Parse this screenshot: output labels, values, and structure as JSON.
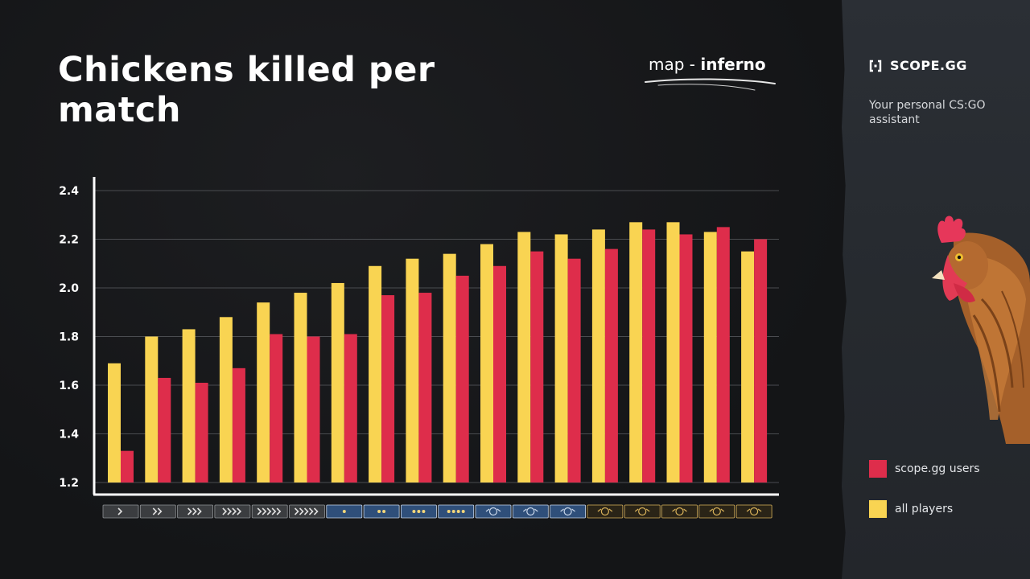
{
  "header": {
    "title": "Chickens killed per match",
    "map_prefix": "map - ",
    "map_name": "inferno"
  },
  "sidebar": {
    "brand": "SCOPE.GG",
    "tagline": "Your personal CS:GO assistant"
  },
  "colors": {
    "all_players": "#f9d452",
    "scope_users": "#de2d4b",
    "background": "#16171a",
    "sidebar": "#282c31"
  },
  "rank_icons": [
    "silver-1-icon",
    "silver-2-icon",
    "silver-3-icon",
    "silver-4-icon",
    "silver-elite-icon",
    "silver-elite-master-icon",
    "gold-nova-1-icon",
    "gold-nova-2-icon",
    "gold-nova-3-icon",
    "gold-nova-master-icon",
    "master-guardian-1-icon",
    "master-guardian-2-icon",
    "master-guardian-elite-icon",
    "distinguished-master-guardian-icon",
    "legendary-eagle-icon",
    "legendary-eagle-master-icon",
    "supreme-master-first-class-icon",
    "global-elite-icon"
  ],
  "chart_data": {
    "type": "bar",
    "title": "Chickens killed per match",
    "categories": [
      "",
      "",
      "",
      "",
      "",
      "",
      "",
      "",
      "",
      "",
      "",
      "",
      "",
      "",
      "",
      "",
      "",
      ""
    ],
    "series": [
      {
        "name": "all players",
        "color": "#f9d452",
        "values": [
          1.69,
          1.8,
          1.83,
          1.88,
          1.94,
          1.98,
          2.02,
          2.09,
          2.12,
          2.14,
          2.18,
          2.23,
          2.22,
          2.24,
          2.27,
          2.27,
          2.23,
          2.15
        ]
      },
      {
        "name": "scope.gg users",
        "color": "#de2d4b",
        "values": [
          1.33,
          1.63,
          1.61,
          1.67,
          1.81,
          1.8,
          1.81,
          1.97,
          1.98,
          2.05,
          2.09,
          2.15,
          2.12,
          2.16,
          2.24,
          2.22,
          2.25,
          2.2
        ]
      }
    ],
    "yticks": [
      "1.2",
      "1.4",
      "1.6",
      "1.8",
      "2.0",
      "2.2",
      "2.4"
    ],
    "ylim": [
      1.2,
      2.45
    ],
    "grid": true,
    "legend_position": "right",
    "legend": [
      "scope.gg users",
      "all players"
    ]
  }
}
